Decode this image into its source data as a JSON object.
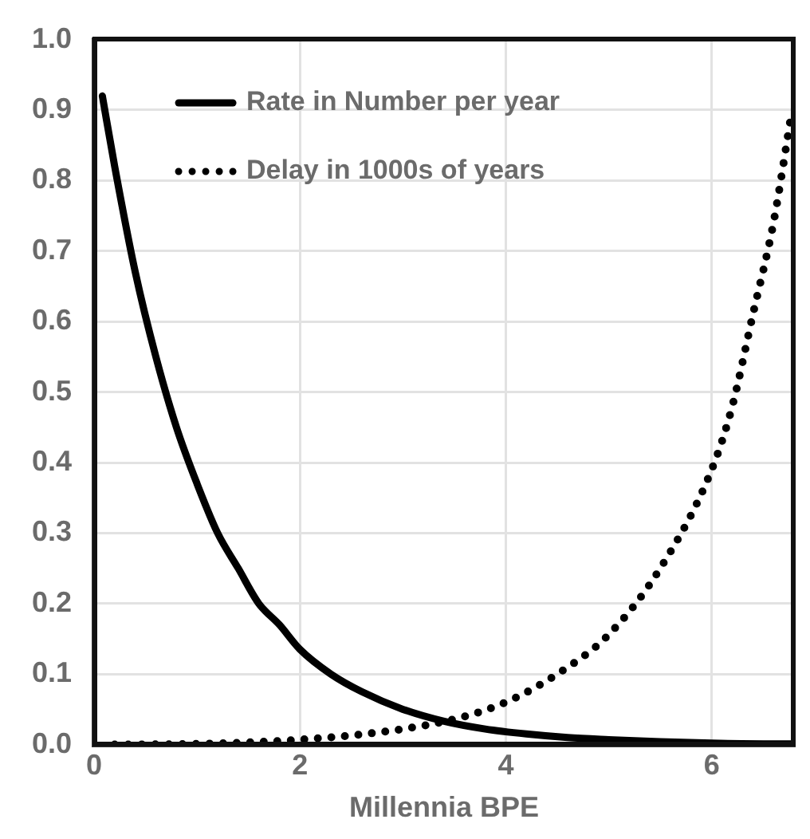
{
  "chart_data": {
    "type": "line",
    "xlabel": "Millennia BPE",
    "xlim": [
      0,
      6.8
    ],
    "xticks": [
      0,
      2,
      4,
      6
    ],
    "ylim": [
      0,
      1
    ],
    "yticks": [
      {
        "value": 0,
        "label": "0.0"
      },
      {
        "value": 0.1,
        "label": "0.1"
      },
      {
        "value": 0.2,
        "label": "0.2"
      },
      {
        "value": 0.3,
        "label": "0.3"
      },
      {
        "value": 0.4,
        "label": "0.4"
      },
      {
        "value": 0.5,
        "label": "0.5"
      },
      {
        "value": 0.6,
        "label": "0.6"
      },
      {
        "value": 0.7,
        "label": "0.7"
      },
      {
        "value": 0.8,
        "label": "0.8"
      },
      {
        "value": 0.9,
        "label": "0.9"
      },
      {
        "value": 1,
        "label": "1.0"
      }
    ],
    "grid": true,
    "legend": "top left",
    "marker": "none",
    "series": [
      {
        "name": "Rate in Number per year",
        "color": "#000000",
        "line_style": "solid",
        "x": [
          0.08,
          0.2,
          0.4,
          0.6,
          0.8,
          1.0,
          1.2,
          1.4,
          1.6,
          1.8,
          2.0,
          2.3,
          2.6,
          3.0,
          3.4,
          3.8,
          4.2,
          4.6,
          5.0,
          5.5,
          6.0,
          6.5,
          6.8
        ],
        "values": [
          0.92,
          0.82,
          0.67,
          0.55,
          0.45,
          0.37,
          0.3,
          0.25,
          0.2,
          0.17,
          0.135,
          0.1,
          0.075,
          0.05,
          0.033,
          0.022,
          0.015,
          0.01,
          0.007,
          0.004,
          0.002,
          0.001,
          0.001
        ]
      },
      {
        "name": "Delay in 1000s of years",
        "color": "#000000",
        "line_style": "dotted",
        "x": [
          0.2,
          1,
          1.5,
          2,
          2.5,
          3,
          3.5,
          4,
          4.5,
          5,
          5.5,
          6,
          6.2,
          6.4,
          6.6,
          6.78
        ],
        "values": [
          0,
          0.001,
          0.003,
          0.007,
          0.013,
          0.022,
          0.036,
          0.06,
          0.1,
          0.156,
          0.25,
          0.39,
          0.48,
          0.61,
          0.74,
          0.9
        ]
      }
    ]
  }
}
